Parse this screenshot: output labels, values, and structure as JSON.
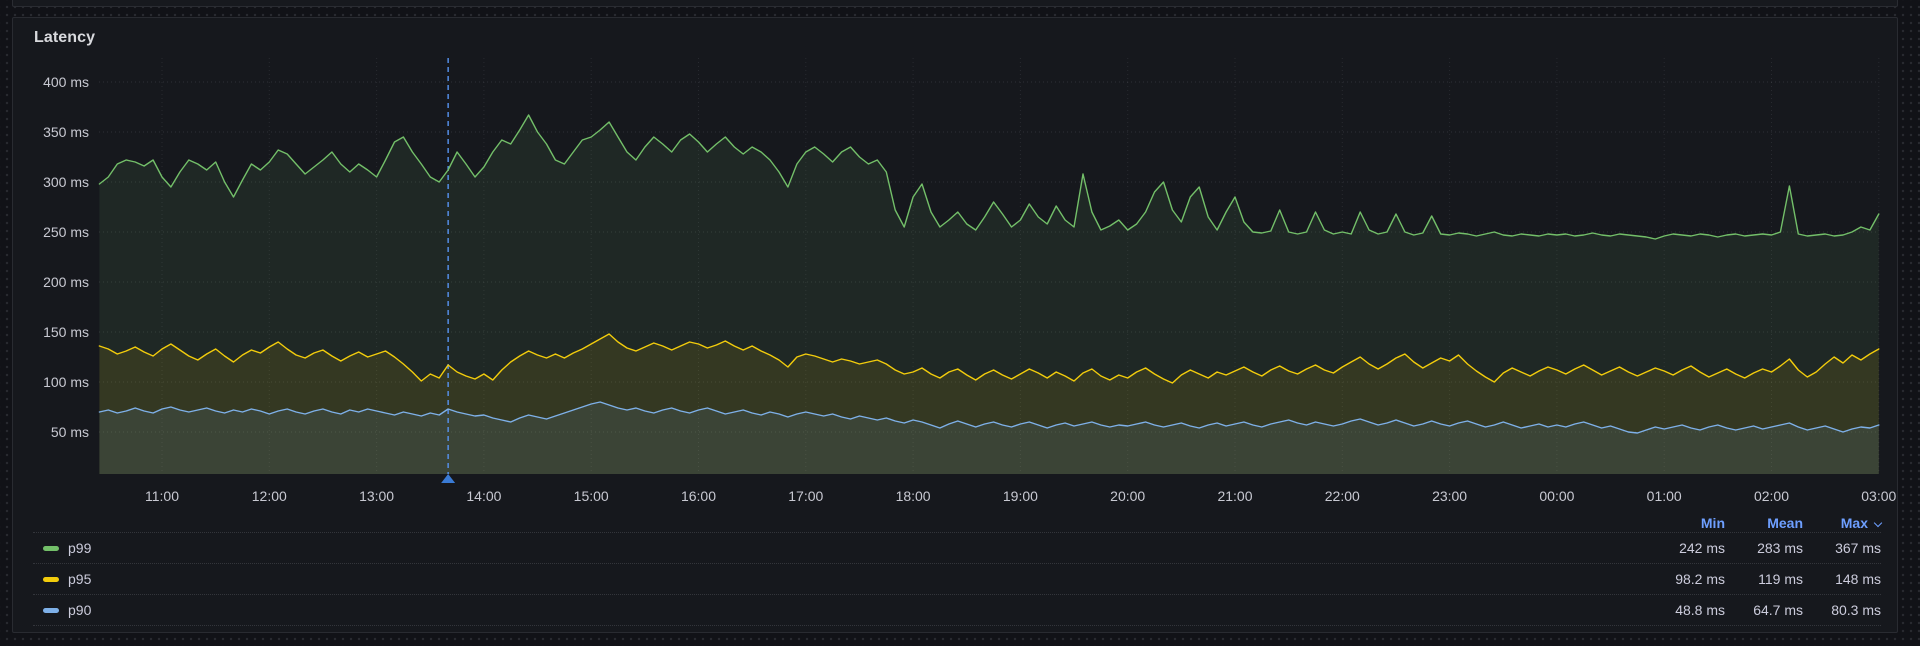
{
  "panel": {
    "title": "Latency"
  },
  "legend": {
    "columns": [
      {
        "label": "Min",
        "sorted": false
      },
      {
        "label": "Mean",
        "sorted": false
      },
      {
        "label": "Max",
        "sorted": true
      }
    ],
    "rows": [
      {
        "label": "p99",
        "color": "#73BF69",
        "min": "242 ms",
        "mean": "283 ms",
        "max": "367 ms"
      },
      {
        "label": "p95",
        "color": "#F2CC0C",
        "min": "98.2 ms",
        "mean": "119 ms",
        "max": "148 ms"
      },
      {
        "label": "p90",
        "color": "#7EB0E8",
        "min": "48.8 ms",
        "mean": "64.7 ms",
        "max": "80.3 ms"
      }
    ]
  },
  "chart_data": {
    "type": "line",
    "title": "Latency",
    "unit": "ms",
    "grid": true,
    "legend_position": "bottom-table",
    "x_start_minutes": 625,
    "x_step_minutes": 5,
    "x_range_minutes": [
      625,
      1620
    ],
    "x_tick_labels": [
      "11:00",
      "12:00",
      "13:00",
      "14:00",
      "15:00",
      "16:00",
      "17:00",
      "18:00",
      "19:00",
      "20:00",
      "21:00",
      "22:00",
      "23:00",
      "00:00",
      "01:00",
      "02:00",
      "03:00"
    ],
    "y_ticks": [
      {
        "value": 50,
        "label": "50 ms"
      },
      {
        "value": 100,
        "label": "100 ms"
      },
      {
        "value": 150,
        "label": "150 ms"
      },
      {
        "value": 200,
        "label": "200 ms"
      },
      {
        "value": 250,
        "label": "250 ms"
      },
      {
        "value": 300,
        "label": "300 ms"
      },
      {
        "value": 350,
        "label": "350 ms"
      },
      {
        "value": 400,
        "label": "400 ms"
      }
    ],
    "ylim": [
      8,
      420
    ],
    "annotation": {
      "time_minutes": 820,
      "time_label": "13:40",
      "color": "#5794F2"
    },
    "series": [
      {
        "name": "p99",
        "color": "#73BF69",
        "fill_opacity": 0.1,
        "values": [
          298,
          305,
          318,
          322,
          320,
          316,
          322,
          305,
          295,
          310,
          322,
          318,
          312,
          320,
          300,
          285,
          302,
          318,
          312,
          320,
          332,
          328,
          318,
          308,
          315,
          322,
          330,
          318,
          310,
          318,
          312,
          305,
          322,
          340,
          345,
          330,
          318,
          305,
          300,
          312,
          330,
          318,
          305,
          315,
          330,
          342,
          338,
          352,
          367,
          350,
          338,
          322,
          318,
          330,
          342,
          345,
          352,
          360,
          345,
          330,
          322,
          335,
          345,
          338,
          330,
          342,
          348,
          340,
          330,
          338,
          345,
          335,
          328,
          335,
          330,
          322,
          310,
          295,
          318,
          330,
          335,
          328,
          320,
          330,
          335,
          325,
          318,
          322,
          310,
          272,
          255,
          285,
          298,
          270,
          255,
          262,
          270,
          258,
          252,
          265,
          280,
          268,
          255,
          262,
          278,
          265,
          258,
          276,
          262,
          255,
          308,
          270,
          252,
          256,
          262,
          252,
          258,
          270,
          290,
          300,
          272,
          260,
          285,
          295,
          265,
          252,
          270,
          285,
          260,
          250,
          249,
          251,
          272,
          250,
          248,
          250,
          270,
          252,
          248,
          250,
          248,
          270,
          252,
          248,
          250,
          268,
          250,
          247,
          249,
          266,
          248,
          247,
          249,
          248,
          246,
          248,
          250,
          247,
          246,
          248,
          247,
          246,
          248,
          247,
          248,
          246,
          247,
          249,
          247,
          246,
          248,
          247,
          246,
          245,
          243,
          246,
          248,
          247,
          246,
          248,
          247,
          245,
          247,
          248,
          246,
          247,
          248,
          247,
          250,
          296,
          248,
          246,
          247,
          248,
          246,
          247,
          250,
          255,
          252,
          268
        ]
      },
      {
        "name": "p95",
        "color": "#F2CC0C",
        "fill_opacity": 0.1,
        "values": [
          136,
          133,
          128,
          131,
          135,
          130,
          126,
          133,
          138,
          132,
          126,
          122,
          128,
          133,
          126,
          120,
          127,
          132,
          129,
          135,
          140,
          133,
          127,
          124,
          129,
          132,
          126,
          121,
          126,
          130,
          125,
          128,
          131,
          125,
          118,
          110,
          101,
          108,
          104,
          117,
          110,
          106,
          103,
          108,
          102,
          112,
          120,
          126,
          131,
          127,
          124,
          128,
          124,
          129,
          133,
          138,
          143,
          148,
          140,
          134,
          131,
          135,
          139,
          136,
          132,
          136,
          140,
          138,
          134,
          137,
          141,
          136,
          132,
          136,
          131,
          127,
          122,
          115,
          125,
          128,
          126,
          123,
          120,
          123,
          121,
          118,
          120,
          122,
          118,
          112,
          108,
          110,
          114,
          108,
          104,
          110,
          113,
          107,
          102,
          108,
          112,
          107,
          103,
          108,
          113,
          109,
          104,
          110,
          106,
          101,
          109,
          113,
          106,
          102,
          107,
          104,
          110,
          114,
          108,
          103,
          99,
          107,
          112,
          108,
          104,
          110,
          107,
          111,
          115,
          110,
          106,
          112,
          116,
          111,
          108,
          113,
          117,
          112,
          109,
          115,
          120,
          125,
          118,
          113,
          118,
          124,
          128,
          120,
          114,
          119,
          124,
          121,
          127,
          118,
          111,
          105,
          100,
          109,
          114,
          110,
          106,
          111,
          115,
          112,
          108,
          113,
          117,
          112,
          107,
          111,
          115,
          110,
          106,
          110,
          114,
          111,
          107,
          112,
          116,
          110,
          105,
          109,
          113,
          108,
          104,
          109,
          113,
          110,
          116,
          123,
          112,
          105,
          110,
          118,
          125,
          119,
          127,
          122,
          128,
          133
        ]
      },
      {
        "name": "p90",
        "color": "#7EB0E8",
        "fill_opacity": 0.1,
        "values": [
          70,
          72,
          69,
          71,
          74,
          71,
          69,
          73,
          75,
          72,
          70,
          72,
          74,
          71,
          69,
          72,
          70,
          73,
          71,
          68,
          71,
          73,
          70,
          68,
          71,
          73,
          70,
          68,
          72,
          70,
          73,
          71,
          69,
          67,
          70,
          68,
          66,
          69,
          67,
          73,
          70,
          68,
          66,
          67,
          64,
          62,
          60,
          64,
          67,
          65,
          63,
          66,
          69,
          72,
          75,
          78,
          80,
          77,
          74,
          72,
          74,
          71,
          69,
          72,
          74,
          71,
          69,
          72,
          74,
          71,
          68,
          70,
          72,
          69,
          67,
          70,
          68,
          65,
          68,
          70,
          68,
          66,
          68,
          65,
          63,
          66,
          64,
          62,
          64,
          61,
          59,
          62,
          60,
          57,
          54,
          58,
          61,
          58,
          55,
          58,
          60,
          57,
          55,
          58,
          60,
          57,
          54,
          57,
          59,
          56,
          58,
          60,
          57,
          55,
          57,
          56,
          58,
          60,
          57,
          55,
          57,
          59,
          56,
          54,
          57,
          59,
          56,
          58,
          60,
          57,
          55,
          58,
          60,
          62,
          59,
          57,
          60,
          58,
          56,
          58,
          61,
          63,
          60,
          57,
          59,
          62,
          59,
          56,
          58,
          61,
          58,
          56,
          59,
          61,
          58,
          55,
          57,
          60,
          57,
          54,
          56,
          58,
          55,
          57,
          55,
          58,
          60,
          57,
          54,
          56,
          53,
          50,
          49,
          52,
          55,
          53,
          55,
          57,
          54,
          52,
          55,
          57,
          54,
          52,
          54,
          56,
          53,
          55,
          57,
          59,
          55,
          52,
          54,
          56,
          53,
          50,
          53,
          55,
          54,
          57
        ]
      }
    ]
  }
}
